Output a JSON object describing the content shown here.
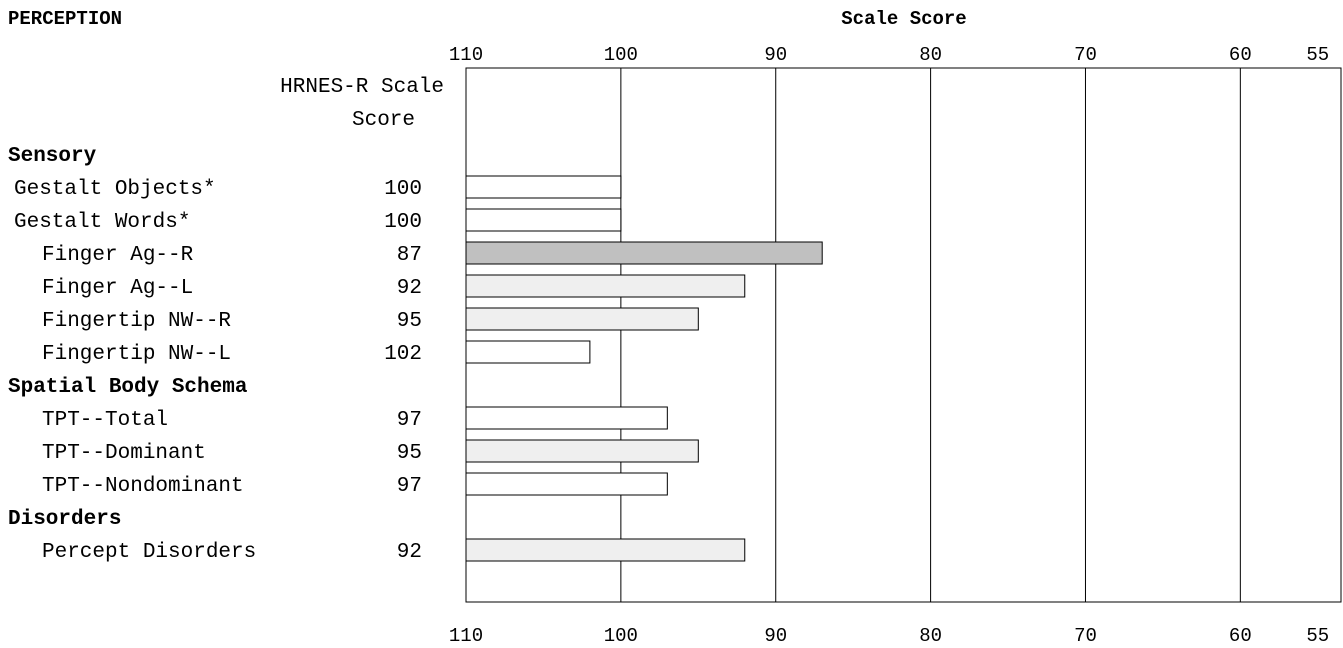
{
  "page_title": "PERCEPTION",
  "colors": {
    "bar_white": "#ffffff",
    "bar_light": "#efefef",
    "bar_gray": "#c0c0c0",
    "stroke": "#000000"
  },
  "chart_data": {
    "type": "bar",
    "orientation": "horizontal",
    "title": "Scale Score",
    "score_header": [
      "HRNES-R Scale",
      "Score"
    ],
    "xlim": [
      110,
      53.5
    ],
    "x_reversed": true,
    "x_ticks": [
      110,
      100,
      90,
      80,
      70,
      60,
      55
    ],
    "x_gridlines": [
      100,
      90,
      80,
      70,
      60
    ],
    "baseline": 110,
    "rows": [
      {
        "kind": "group",
        "label": "Sensory"
      },
      {
        "kind": "item",
        "label": "Gestalt Objects*",
        "score_label": "100",
        "value": 100,
        "shade": "bar_white",
        "indent": 1
      },
      {
        "kind": "item",
        "label": "Gestalt Words*",
        "score_label": "100",
        "value": 100,
        "shade": "bar_white",
        "indent": 1
      },
      {
        "kind": "item",
        "label": "Finger Ag--R",
        "score_label": "87",
        "value": 87,
        "shade": "bar_gray",
        "indent": 2
      },
      {
        "kind": "item",
        "label": "Finger Ag--L",
        "score_label": "92",
        "value": 92,
        "shade": "bar_light",
        "indent": 2
      },
      {
        "kind": "item",
        "label": "Fingertip NW--R",
        "score_label": "95",
        "value": 95,
        "shade": "bar_light",
        "indent": 2
      },
      {
        "kind": "item",
        "label": "Fingertip NW--L",
        "score_label": "102",
        "value": 102,
        "shade": "bar_white",
        "indent": 2
      },
      {
        "kind": "group",
        "label": "Spatial Body Schema"
      },
      {
        "kind": "item",
        "label": "TPT--Total",
        "score_label": "97",
        "value": 97,
        "shade": "bar_white",
        "indent": 2
      },
      {
        "kind": "item",
        "label": "TPT--Dominant",
        "score_label": "95",
        "value": 95,
        "shade": "bar_light",
        "indent": 2
      },
      {
        "kind": "item",
        "label": "TPT--Nondominant",
        "score_label": "97",
        "value": 97,
        "shade": "bar_white",
        "indent": 2
      },
      {
        "kind": "group",
        "label": "Disorders"
      },
      {
        "kind": "item",
        "label": "Percept Disorders",
        "score_label": "92",
        "value": 92,
        "shade": "bar_light",
        "indent": 2
      }
    ]
  }
}
